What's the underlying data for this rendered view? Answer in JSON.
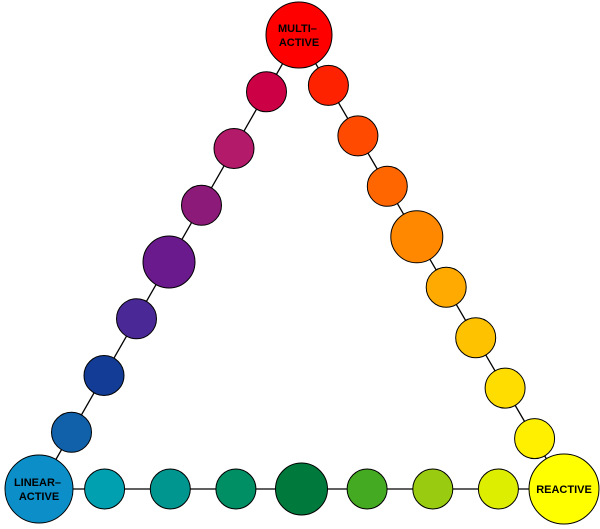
{
  "diagram": {
    "vertices": {
      "top": {
        "label_lines": [
          "MULTI–",
          "ACTIVE"
        ],
        "color": "#ff0000"
      },
      "left": {
        "label_lines": [
          "LINEAR–",
          "ACTIVE"
        ],
        "color": "#0c8fc8"
      },
      "right": {
        "label_lines": [
          "REACTIVE"
        ],
        "color": "#ffff00"
      }
    },
    "edges": {
      "left_side": {
        "colors": [
          "#cc0044",
          "#b31a6a",
          "#8c1a78",
          "#6a1a8c",
          "#4a2896",
          "#123c96",
          "#1060aa"
        ],
        "large_index": 3
      },
      "right_side": {
        "colors": [
          "#ff2200",
          "#ff4a00",
          "#ff6600",
          "#ff8800",
          "#ffaa00",
          "#ffc200",
          "#ffdd00",
          "#fff000"
        ],
        "large_index": 3
      },
      "bottom_side": {
        "colors": [
          "#00a0b0",
          "#009690",
          "#008e64",
          "#007a3c",
          "#44aa22",
          "#99cc11",
          "#ddee00"
        ],
        "large_index": 3
      }
    },
    "stroke_color": "#000000"
  }
}
